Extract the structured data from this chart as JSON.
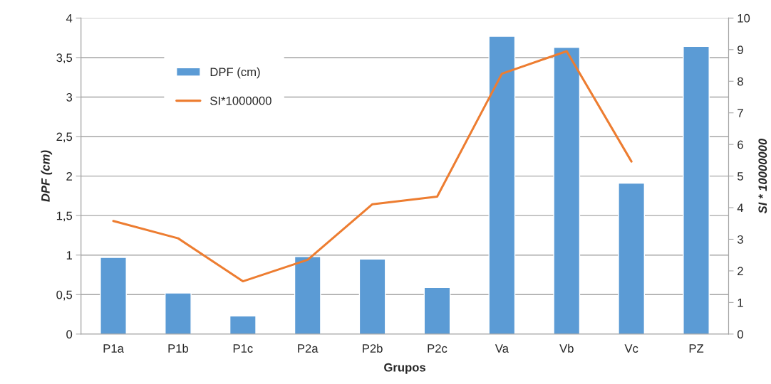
{
  "chart_data": {
    "type": "bar",
    "xlabel": "Grupos",
    "ylabel": "DPF (cm)",
    "y2label": "SI * 10000000",
    "categories": [
      "P1a",
      "P1b",
      "P1c",
      "P2a",
      "P2b",
      "P2c",
      "Va",
      "Vb",
      "Vc",
      "PZ"
    ],
    "series": [
      {
        "name": "DPF (cm)",
        "color": "#5b9bd5",
        "values": [
          0.97,
          0.52,
          0.23,
          0.98,
          0.95,
          0.59,
          3.77,
          3.63,
          1.91,
          3.64
        ]
      },
      {
        "name": "SI*1000000",
        "type": "line",
        "axis": "y2",
        "color": "#ed7d31",
        "values": [
          3.58,
          3.03,
          1.67,
          2.35,
          4.11,
          4.35,
          8.24,
          8.95,
          5.46,
          null
        ]
      }
    ],
    "ylim": [
      0,
      4
    ],
    "yticks": [
      0,
      {
        "value": 0.5,
        "label": "0,5"
      },
      1,
      {
        "value": 1.5,
        "label": "1,5"
      },
      2,
      {
        "value": 2.5,
        "label": "2,5"
      },
      3,
      {
        "value": 3.5,
        "label": "3,5"
      },
      4
    ],
    "y2lim": [
      0,
      10
    ],
    "y2ticks": [
      0,
      1,
      2,
      3,
      4,
      5,
      6,
      7,
      8,
      9,
      10
    ],
    "grid": "y",
    "legend": "top left"
  }
}
